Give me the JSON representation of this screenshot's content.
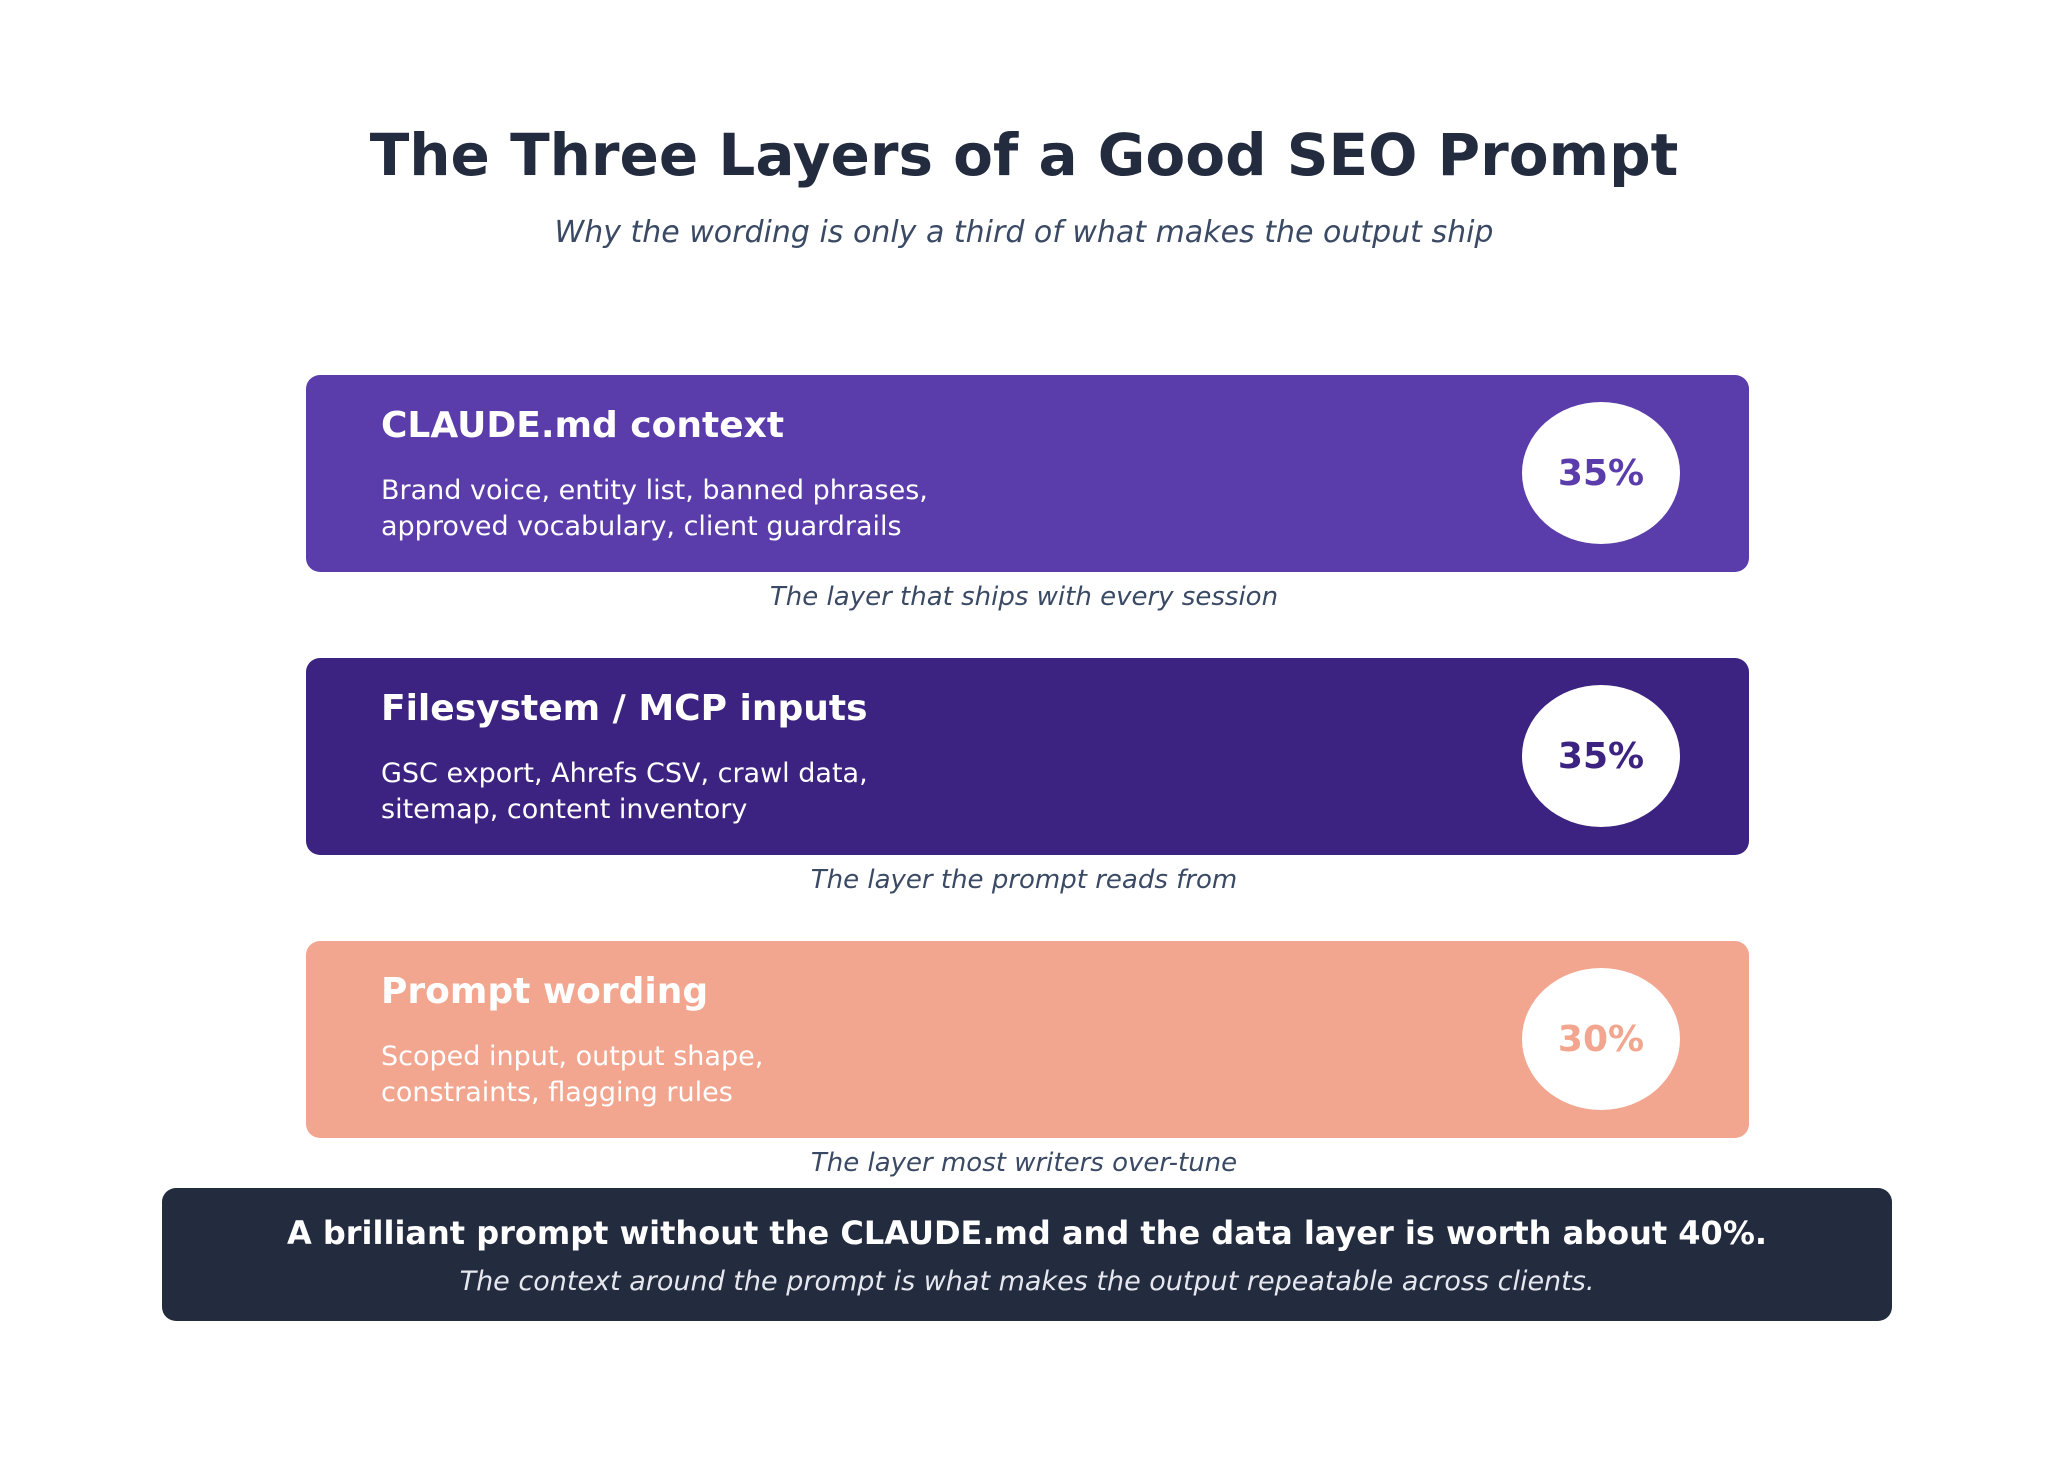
{
  "title": "The Three Layers of a Good SEO Prompt",
  "subtitle": "Why the wording is only a third of what makes the output ship",
  "layers": [
    {
      "heading": "CLAUDE.md context",
      "desc_line1": "Brand voice, entity list, banned phrases,",
      "desc_line2": "approved vocabulary, client guardrails",
      "percent": "35%",
      "caption": "The layer that ships with every session",
      "color": "#5a3dab"
    },
    {
      "heading": "Filesystem / MCP inputs",
      "desc_line1": "GSC export, Ahrefs CSV, crawl data,",
      "desc_line2": "sitemap, content inventory",
      "percent": "35%",
      "caption": "The layer the prompt reads from",
      "color": "#3c2381"
    },
    {
      "heading": "Prompt wording",
      "desc_line1": "Scoped input, output shape,",
      "desc_line2": "constraints, flagging rules",
      "percent": "30%",
      "caption": "The layer most writers over-tune",
      "color": "#f3a68f"
    }
  ],
  "callout": {
    "main": "A brilliant prompt without the CLAUDE.md and the data layer is worth about 40%.",
    "sub": "The context around the prompt is what makes the output repeatable across clients."
  }
}
